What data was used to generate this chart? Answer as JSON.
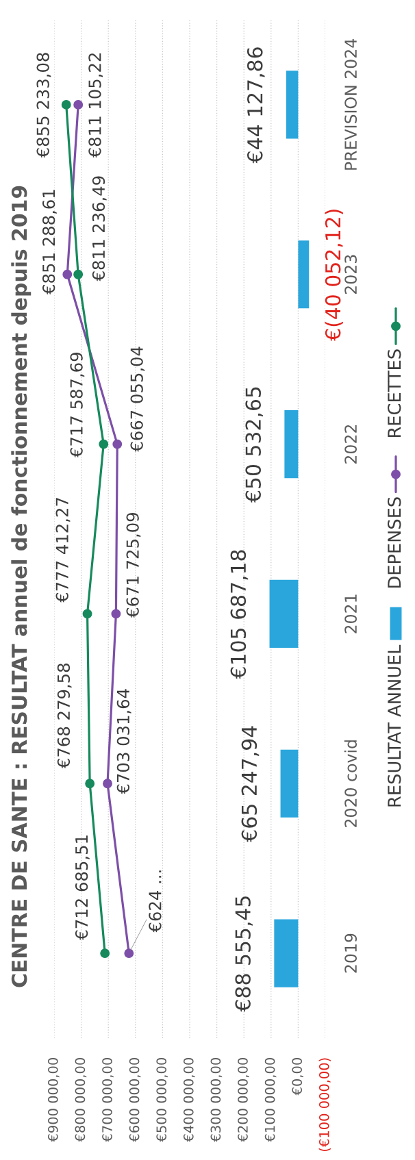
{
  "chart_data": {
    "type": "bar",
    "orientation": "horizontal",
    "title": "CENTRE DE SANTE : RESULTAT annuel de fonctionnement depuis 2019",
    "categories": [
      "PREVISION 2024",
      "2023",
      "2022",
      "2021",
      "2020 covid",
      "2019"
    ],
    "series": [
      {
        "name": "RESULTAT ANNUEL",
        "color": "#2aa6dc",
        "values": [
          44127.86,
          -40052.12,
          50532.65,
          105687.18,
          65247.94,
          88555.45
        ],
        "value_labels": [
          "€44 127,86",
          "€(40 052,12)",
          "€50 532,65",
          "€105 687,18",
          "€65 247,94",
          "€88 555,45"
        ]
      },
      {
        "name": "DEPENSES",
        "type": "line",
        "color": "#7d4fa8",
        "values": [
          811105.22,
          851288.61,
          667055.04,
          671725.09,
          703031.64,
          624000
        ],
        "value_labels": [
          "€811 105,22",
          "€851 288,61",
          "€667 055,04",
          "€671 725,09",
          "€703 031,64",
          "€624 ..."
        ]
      },
      {
        "name": "RECETTES",
        "type": "line",
        "color": "#168a5c",
        "values": [
          855233.08,
          811236.49,
          717587.69,
          777412.27,
          768279.58,
          712685.51
        ],
        "value_labels": [
          "€855 233,08",
          "€811 236,49",
          "€717 587,69",
          "€777 412,27",
          "€768 279,58",
          "€712 685,51"
        ]
      }
    ],
    "xlim": [
      900000,
      -100000
    ],
    "xticks": [
      {
        "value": 900000,
        "label": "€900 000,00"
      },
      {
        "value": 800000,
        "label": "€800 000,00"
      },
      {
        "value": 700000,
        "label": "€700 000,00"
      },
      {
        "value": 600000,
        "label": "€600 000,00"
      },
      {
        "value": 500000,
        "label": "€500 000,00"
      },
      {
        "value": 400000,
        "label": "€400 000,00"
      },
      {
        "value": 300000,
        "label": "€300 000,00"
      },
      {
        "value": 200000,
        "label": "€200 000,00"
      },
      {
        "value": 100000,
        "label": "€100 000,00"
      },
      {
        "value": 0,
        "label": "€0,00"
      },
      {
        "value": -100000,
        "label": "(€100 000,00)"
      }
    ],
    "grid": "x",
    "legend": "right",
    "marker": "circle"
  }
}
